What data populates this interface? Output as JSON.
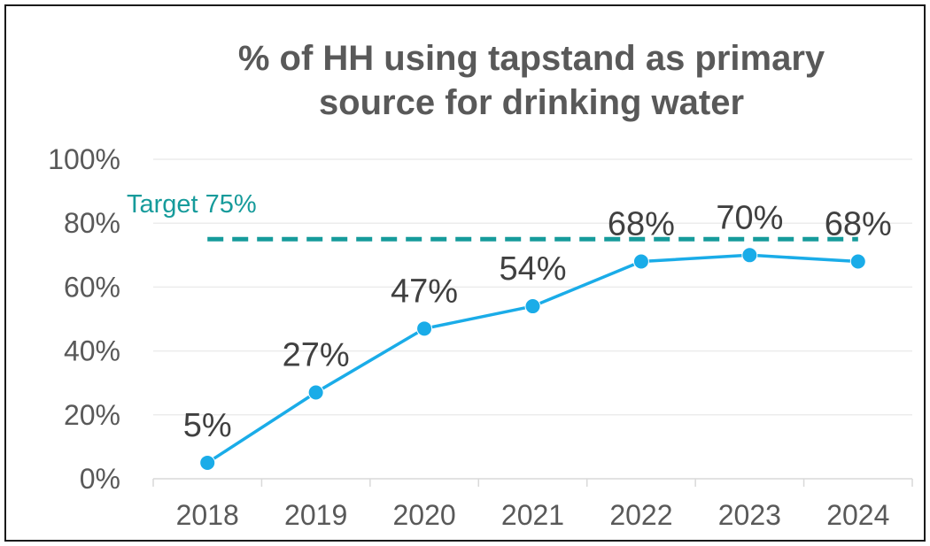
{
  "chart_data": {
    "type": "line",
    "title_lines": [
      "% of HH using tapstand as primary",
      "source for drinking water"
    ],
    "categories": [
      "2018",
      "2019",
      "2020",
      "2021",
      "2022",
      "2023",
      "2024"
    ],
    "series": [
      {
        "values": [
          5,
          27,
          47,
          54,
          68,
          70,
          68
        ],
        "color": "#1aace8"
      }
    ],
    "data_labels": [
      "5%",
      "27%",
      "47%",
      "54%",
      "68%",
      "70%",
      "68%"
    ],
    "ylim": [
      0,
      100
    ],
    "yticks": [
      0,
      20,
      40,
      60,
      80,
      100
    ],
    "ytick_labels": [
      "0%",
      "20%",
      "40%",
      "60%",
      "80%",
      "100%"
    ],
    "target": {
      "value": 75,
      "label": "Target 75%",
      "color": "#169b9b",
      "style": "dashed"
    },
    "grid": true,
    "legend": "none"
  }
}
